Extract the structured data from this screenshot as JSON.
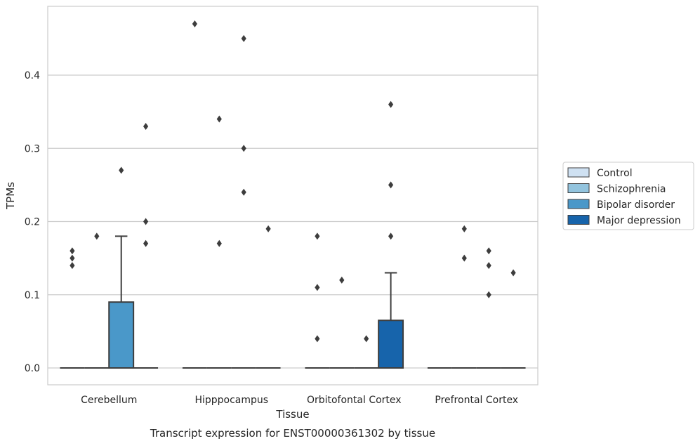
{
  "chart_data": {
    "type": "box",
    "title": "",
    "caption": "Transcript expression for ENST00000361302 by tissue",
    "xlabel": "Tissue",
    "ylabel": "TPMs",
    "ylim": [
      -0.023,
      0.494
    ],
    "yticks": [
      "0.0",
      "0.1",
      "0.2",
      "0.3",
      "0.4"
    ],
    "grid": "horizontal",
    "legend_position": "right",
    "categories": [
      "Cerebellum",
      "Hipppocampus",
      "Orbitofontal Cortex",
      "Prefrontal Cortex"
    ],
    "series": [
      {
        "name": "Control",
        "color": "#cfe1f2",
        "boxes": [
          {
            "q1": 0,
            "median": 0,
            "q3": 0,
            "whisker_low": 0,
            "whisker_high": 0,
            "outliers": [
              0.14,
              0.15,
              0.16
            ]
          },
          {
            "q1": 0,
            "median": 0,
            "q3": 0,
            "whisker_low": 0,
            "whisker_high": 0,
            "outliers": [
              0.47
            ]
          },
          {
            "q1": 0,
            "median": 0,
            "q3": 0,
            "whisker_low": 0,
            "whisker_high": 0,
            "outliers": [
              0.04,
              0.11,
              0.18
            ]
          },
          {
            "q1": 0,
            "median": 0,
            "q3": 0,
            "whisker_low": 0,
            "whisker_high": 0,
            "outliers": []
          }
        ]
      },
      {
        "name": "Schizophrenia",
        "color": "#93c4de",
        "boxes": [
          {
            "q1": 0,
            "median": 0,
            "q3": 0,
            "whisker_low": 0,
            "whisker_high": 0,
            "outliers": [
              0.18
            ]
          },
          {
            "q1": 0,
            "median": 0,
            "q3": 0,
            "whisker_low": 0,
            "whisker_high": 0,
            "outliers": [
              0.17,
              0.34
            ]
          },
          {
            "q1": 0,
            "median": 0,
            "q3": 0,
            "whisker_low": 0,
            "whisker_high": 0,
            "outliers": [
              0.12
            ]
          },
          {
            "q1": 0,
            "median": 0,
            "q3": 0,
            "whisker_low": 0,
            "whisker_high": 0,
            "outliers": [
              0.19,
              0.15
            ]
          }
        ]
      },
      {
        "name": "Bipolar disorder",
        "color": "#4a98c9",
        "boxes": [
          {
            "q1": 0,
            "median": 0,
            "q3": 0.09,
            "whisker_low": 0,
            "whisker_high": 0.18,
            "outliers": [
              0.27
            ]
          },
          {
            "q1": 0,
            "median": 0,
            "q3": 0,
            "whisker_low": 0,
            "whisker_high": 0,
            "outliers": [
              0.24,
              0.3,
              0.45
            ]
          },
          {
            "q1": 0,
            "median": 0,
            "q3": 0,
            "whisker_low": 0,
            "whisker_high": 0,
            "outliers": [
              0.04
            ]
          },
          {
            "q1": 0,
            "median": 0,
            "q3": 0,
            "whisker_low": 0,
            "whisker_high": 0,
            "outliers": [
              0.16,
              0.14,
              0.1
            ]
          }
        ]
      },
      {
        "name": "Major depression",
        "color": "#1764ab",
        "boxes": [
          {
            "q1": 0,
            "median": 0,
            "q3": 0,
            "whisker_low": 0,
            "whisker_high": 0,
            "outliers": [
              0.17,
              0.2,
              0.33
            ]
          },
          {
            "q1": 0,
            "median": 0,
            "q3": 0,
            "whisker_low": 0,
            "whisker_high": 0,
            "outliers": [
              0.19
            ]
          },
          {
            "q1": 0,
            "median": 0,
            "q3": 0.065,
            "whisker_low": 0,
            "whisker_high": 0.13,
            "outliers": [
              0.18,
              0.25,
              0.36
            ]
          },
          {
            "q1": 0,
            "median": 0,
            "q3": 0,
            "whisker_low": 0,
            "whisker_high": 0,
            "outliers": [
              0.13
            ]
          }
        ]
      }
    ]
  }
}
